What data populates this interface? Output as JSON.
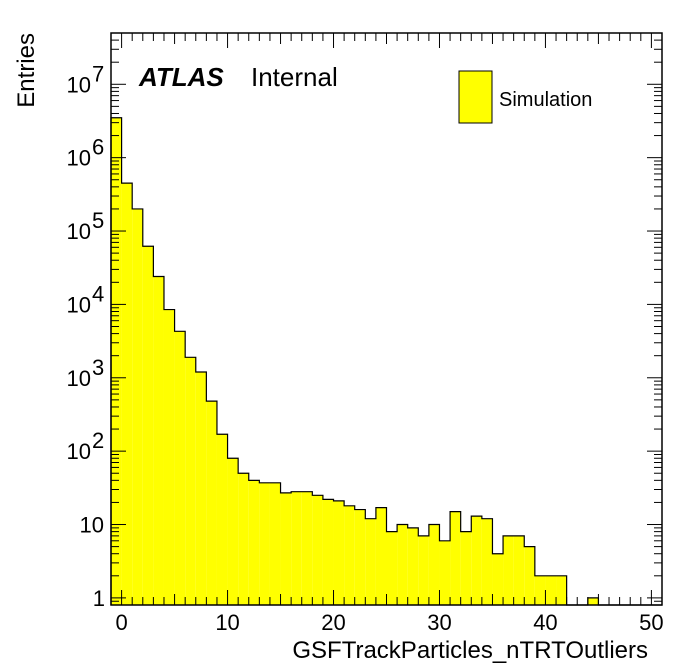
{
  "chart_data": {
    "type": "bar",
    "style": "step-filled-histogram",
    "fill_color": "#ffff00",
    "edge_color": "#000000",
    "xlabel": "GSFTrackParticles_nTRTOutliers",
    "ylabel": "Entries",
    "xlim": [
      -1,
      51
    ],
    "ylim": [
      0.8,
      50000000
    ],
    "ylog": true,
    "x_ticks": [
      0,
      10,
      20,
      30,
      40,
      50
    ],
    "y_ticks": [
      {
        "value": 1,
        "base": "1",
        "exp": ""
      },
      {
        "value": 10,
        "base": "10",
        "exp": ""
      },
      {
        "value": 100,
        "base": "10",
        "exp": "2"
      },
      {
        "value": 1000,
        "base": "10",
        "exp": "3"
      },
      {
        "value": 10000,
        "base": "10",
        "exp": "4"
      },
      {
        "value": 100000,
        "base": "10",
        "exp": "5"
      },
      {
        "value": 1000000,
        "base": "10",
        "exp": "6"
      },
      {
        "value": 10000000,
        "base": "10",
        "exp": "7"
      }
    ],
    "bin_edges_start": -1,
    "bin_width": 1,
    "values": [
      3500000,
      450000,
      200000,
      62000,
      24000,
      8500,
      4300,
      1900,
      1200,
      480,
      170,
      80,
      50,
      40,
      37,
      37,
      27,
      28,
      28,
      25,
      22,
      21,
      18,
      16,
      12,
      17,
      8,
      10,
      9,
      7,
      10,
      6,
      15,
      8,
      13,
      12,
      4,
      7,
      7,
      5,
      2,
      2,
      2,
      0,
      0,
      1,
      0,
      0,
      0,
      0,
      0,
      0
    ],
    "labels": {
      "experiment": "ATLAS",
      "status": "Internal"
    },
    "legend": [
      {
        "name": "Simulation",
        "color": "#ffff00"
      }
    ],
    "legend_position": "top-right",
    "grid": false
  }
}
